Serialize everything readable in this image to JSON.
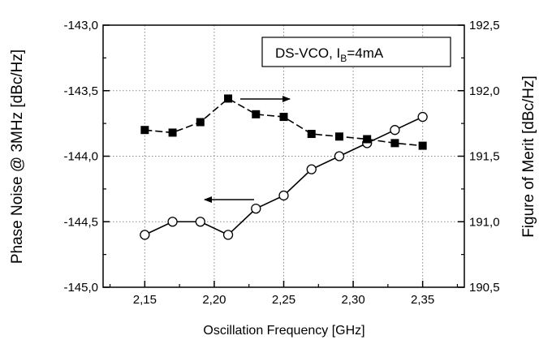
{
  "chart_data": {
    "type": "line",
    "title": "",
    "xlabel": "Oscillation Frequency [GHz]",
    "ylabel_left": "Phase Noise @ 3MHz [dBc/Hz]",
    "ylabel_right": "Figure of Merit [dBc/Hz]",
    "xlim": [
      2.12,
      2.38
    ],
    "ylim_left": [
      -145.0,
      -143.0
    ],
    "ylim_right": [
      190.5,
      192.5
    ],
    "x_ticks": [
      "2,15",
      "2,20",
      "2,25",
      "2,30",
      "2,35"
    ],
    "x_tick_values": [
      2.15,
      2.2,
      2.25,
      2.3,
      2.35
    ],
    "y_left_ticks": [
      "-143,0",
      "-143,5",
      "-144,0",
      "-144,5",
      "-145,0"
    ],
    "y_left_tick_values": [
      -143.0,
      -143.5,
      -144.0,
      -144.5,
      -145.0
    ],
    "y_right_ticks": [
      "192,5",
      "192,0",
      "191,5",
      "191,0",
      "190,5"
    ],
    "y_right_tick_values": [
      192.5,
      192.0,
      191.5,
      191.0,
      190.5
    ],
    "grid": true,
    "legend": {
      "placement": "top-right",
      "prefix": "DS-VCO, I",
      "subscript": "B",
      "suffix": "=4mA"
    },
    "x": [
      2.15,
      2.17,
      2.19,
      2.21,
      2.23,
      2.25,
      2.27,
      2.29,
      2.31,
      2.33,
      2.35
    ],
    "series": [
      {
        "axis": "left",
        "marker": "open-circle",
        "values": [
          -144.6,
          -144.5,
          -144.5,
          -144.6,
          -144.4,
          -144.3,
          -144.1,
          -144.0,
          -143.9,
          -143.8,
          -143.7
        ]
      },
      {
        "axis": "right",
        "marker": "filled-square",
        "values": [
          191.7,
          191.68,
          191.76,
          191.94,
          191.82,
          191.8,
          191.67,
          191.65,
          191.63,
          191.6,
          191.58
        ]
      }
    ]
  }
}
